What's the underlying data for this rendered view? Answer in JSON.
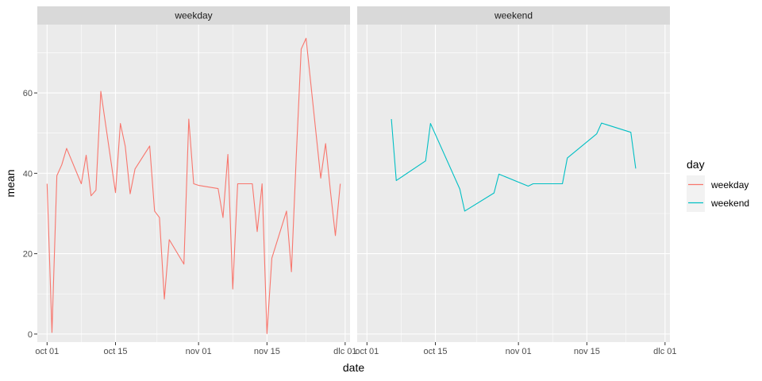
{
  "chart_data": {
    "type": "line",
    "xlabel": "date",
    "ylabel": "mean",
    "ylim": [
      -2,
      77
    ],
    "y_ticks": [
      0,
      20,
      40,
      60
    ],
    "x_ticks": [
      "2012-10-01",
      "2012-10-15",
      "2012-11-01",
      "2012-11-15",
      "2012-12-01"
    ],
    "x_tick_labels": [
      "oct 01",
      "oct 15",
      "nov 01",
      "nov 15",
      "dlc 01"
    ],
    "xlim": [
      "2012-09-29",
      "2012-12-02"
    ],
    "grid": true,
    "legend": {
      "title": "day",
      "placement": "right"
    },
    "panels": [
      {
        "strip": "weekday",
        "series": [
          {
            "name": "weekday",
            "color": "#F8766D",
            "points": [
              [
                "2012-10-01",
                37.4
              ],
              [
                "2012-10-02",
                0.4
              ],
              [
                "2012-10-03",
                39.4
              ],
              [
                "2012-10-04",
                42.1
              ],
              [
                "2012-10-05",
                46.2
              ],
              [
                "2012-10-08",
                37.4
              ],
              [
                "2012-10-09",
                44.5
              ],
              [
                "2012-10-10",
                34.4
              ],
              [
                "2012-10-11",
                35.8
              ],
              [
                "2012-10-12",
                60.4
              ],
              [
                "2012-10-15",
                35.2
              ],
              [
                "2012-10-16",
                52.4
              ],
              [
                "2012-10-17",
                46.7
              ],
              [
                "2012-10-18",
                34.9
              ],
              [
                "2012-10-19",
                41.1
              ],
              [
                "2012-10-22",
                46.8
              ],
              [
                "2012-10-23",
                30.6
              ],
              [
                "2012-10-24",
                29.0
              ],
              [
                "2012-10-25",
                8.7
              ],
              [
                "2012-10-26",
                23.5
              ],
              [
                "2012-10-29",
                17.4
              ],
              [
                "2012-10-30",
                53.5
              ],
              [
                "2012-10-31",
                37.4
              ],
              [
                "2012-11-01",
                37.0
              ],
              [
                "2012-11-02",
                36.8
              ],
              [
                "2012-11-05",
                36.2
              ],
              [
                "2012-11-06",
                29.0
              ],
              [
                "2012-11-07",
                44.7
              ],
              [
                "2012-11-08",
                11.2
              ],
              [
                "2012-11-09",
                37.4
              ],
              [
                "2012-11-12",
                37.4
              ],
              [
                "2012-11-13",
                25.5
              ],
              [
                "2012-11-14",
                37.4
              ],
              [
                "2012-11-15",
                0.1
              ],
              [
                "2012-11-16",
                18.9
              ],
              [
                "2012-11-19",
                30.6
              ],
              [
                "2012-11-20",
                15.5
              ],
              [
                "2012-11-21",
                44.4
              ],
              [
                "2012-11-22",
                70.9
              ],
              [
                "2012-11-23",
                73.6
              ],
              [
                "2012-11-26",
                38.8
              ],
              [
                "2012-11-27",
                47.4
              ],
              [
                "2012-11-28",
                35.4
              ],
              [
                "2012-11-29",
                24.5
              ],
              [
                "2012-11-30",
                37.4
              ]
            ]
          }
        ]
      },
      {
        "strip": "weekend",
        "series": [
          {
            "name": "weekend",
            "color": "#00BFC4",
            "points": [
              [
                "2012-10-06",
                53.5
              ],
              [
                "2012-10-07",
                38.2
              ],
              [
                "2012-10-13",
                43.1
              ],
              [
                "2012-10-14",
                52.4
              ],
              [
                "2012-10-20",
                36.1
              ],
              [
                "2012-10-21",
                30.6
              ],
              [
                "2012-10-27",
                35.1
              ],
              [
                "2012-10-28",
                39.8
              ],
              [
                "2012-11-03",
                36.8
              ],
              [
                "2012-11-04",
                37.4
              ],
              [
                "2012-11-10",
                37.4
              ],
              [
                "2012-11-11",
                43.8
              ],
              [
                "2012-11-17",
                49.8
              ],
              [
                "2012-11-18",
                52.5
              ],
              [
                "2012-11-24",
                50.2
              ],
              [
                "2012-11-25",
                41.2
              ]
            ]
          }
        ]
      }
    ]
  }
}
